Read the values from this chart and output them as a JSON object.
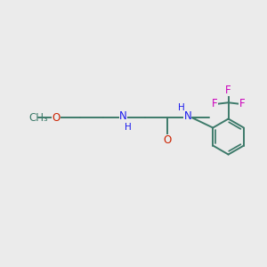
{
  "background_color": "#ebebeb",
  "bond_color": "#3d7a6a",
  "N_color": "#1a1aee",
  "O_color": "#cc2200",
  "F_color": "#cc00bb",
  "line_width": 1.4,
  "figsize": [
    3.0,
    3.0
  ],
  "dpi": 100,
  "xlim": [
    0,
    10
  ],
  "ylim": [
    0,
    10
  ]
}
